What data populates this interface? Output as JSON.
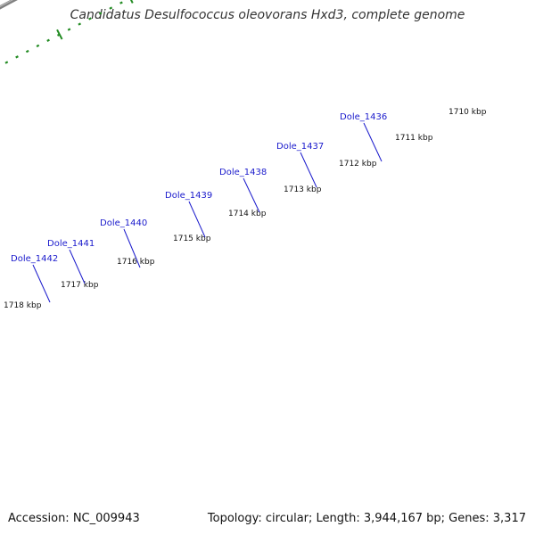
{
  "title": "Candidatus Desulfococcus oleovorans Hxd3, complete genome",
  "footer": {
    "accession": "Accession: NC_009943",
    "summary": "Topology: circular; Length: 3,944,167 bp; Genes: 3,317"
  },
  "colors": {
    "cds": "#1414e6",
    "rna": "#6b8e23",
    "other": "#e61414",
    "backbone": "#808080",
    "ticks": "#228b22",
    "gene_label": "#1a1acc"
  },
  "scale_labels": [
    "1710 kbp",
    "1711 kbp",
    "1712 kbp",
    "1713 kbp",
    "1714 kbp",
    "1715 kbp",
    "1716 kbp",
    "1717 kbp",
    "1718 kbp"
  ],
  "gene_labels": [
    "Dole_1436",
    "Dole_1437",
    "Dole_1438",
    "Dole_1439",
    "Dole_1440",
    "Dole_1441",
    "Dole_1442"
  ]
}
